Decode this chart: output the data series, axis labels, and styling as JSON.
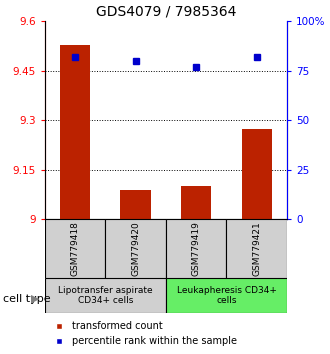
{
  "title": "GDS4079 / 7985364",
  "samples": [
    "GSM779418",
    "GSM779420",
    "GSM779419",
    "GSM779421"
  ],
  "transformed_counts": [
    9.527,
    9.09,
    9.1,
    9.275
  ],
  "percentile_ranks": [
    82,
    80,
    77,
    82
  ],
  "ylim_left": [
    9.0,
    9.6
  ],
  "ylim_right": [
    0,
    100
  ],
  "yticks_left": [
    9.0,
    9.15,
    9.3,
    9.45,
    9.6
  ],
  "ytick_labels_left": [
    "9",
    "9.15",
    "9.3",
    "9.45",
    "9.6"
  ],
  "yticks_right": [
    0,
    25,
    50,
    75,
    100
  ],
  "ytick_labels_right": [
    "0",
    "25",
    "50",
    "75",
    "100%"
  ],
  "grid_lines": [
    9.15,
    9.3,
    9.45
  ],
  "bar_color": "#bb2200",
  "dot_color": "#0000cc",
  "bar_width": 0.5,
  "groups": [
    {
      "label": "Lipotransfer aspirate\nCD34+ cells",
      "indices": [
        0,
        1
      ],
      "color": "#d0d0d0"
    },
    {
      "label": "Leukapheresis CD34+\ncells",
      "indices": [
        2,
        3
      ],
      "color": "#66ee66"
    }
  ],
  "cell_type_label": "cell type",
  "legend_bar_label": "transformed count",
  "legend_dot_label": "percentile rank within the sample",
  "title_fontsize": 10,
  "tick_fontsize": 7.5,
  "label_fontsize": 7,
  "sample_fontsize": 6.5,
  "group_fontsize": 6.5
}
